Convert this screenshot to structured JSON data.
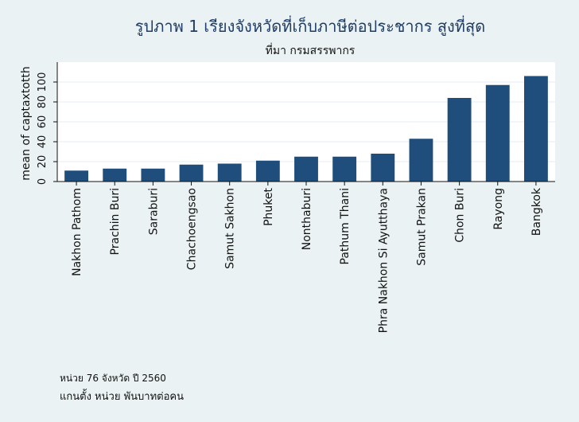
{
  "chart_data": {
    "type": "bar",
    "title": "รูปภาพ 1 เรียงจังหวัดที่เก็บภาษีต่อประชากร สูงที่สุด",
    "subtitle": "ที่มา กรมสรรพากร",
    "ylabel": "mean of captaxtotth",
    "xlabel": "",
    "ylim": [
      0,
      120
    ],
    "yticks": [
      0,
      20,
      40,
      60,
      80,
      100
    ],
    "categories": [
      "Nakhon Pathom",
      "Prachin Buri",
      "Saraburi",
      "Chachoengsao",
      "Samut Sakhon",
      "Phuket",
      "Nonthaburi",
      "Pathum Thani",
      "Phra Nakhon Si Ayutthaya",
      "Samut Prakan",
      "Chon Buri",
      "Rayong",
      "Bangkok"
    ],
    "values": [
      11,
      13,
      13,
      17,
      18,
      21,
      25,
      25,
      28,
      43,
      84,
      97,
      106
    ],
    "bar_color": "#1f4e7d",
    "plot_background": "#ffffff",
    "gridlines": "horizontal"
  },
  "notes": {
    "line1": "หน่วย 76 จังหวัด ปี 2560",
    "line2": "แกนตั้ง หน่วย พันบาทต่อคน"
  },
  "colors": {
    "page_background": "#eaf2f3",
    "title": "#1f3d66"
  }
}
